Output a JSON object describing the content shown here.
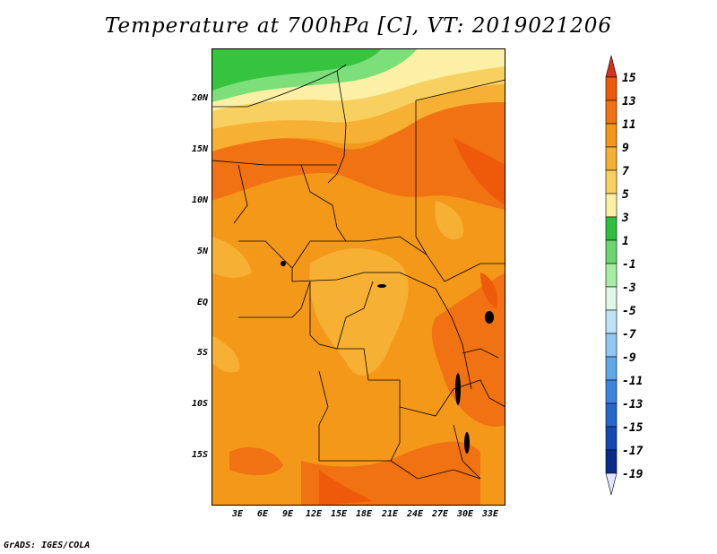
{
  "title": "Temperature at 700hPa [C], VT: 2019021206",
  "credit": "GrADS: IGES/COLA",
  "lat_labels": [
    "20N",
    "15N",
    "10N",
    "5N",
    "EQ",
    "5S",
    "10S",
    "15S"
  ],
  "lon_labels": [
    "3E",
    "6E",
    "9E",
    "12E",
    "15E",
    "18E",
    "21E",
    "24E",
    "27E",
    "30E",
    "33E"
  ],
  "colorbar": {
    "labels": [
      "15",
      "13",
      "11",
      "9",
      "7",
      "5",
      "3",
      "1",
      "-1",
      "-3",
      "-5",
      "-7",
      "-9",
      "-11",
      "-13",
      "-15",
      "-17",
      "-19"
    ],
    "colors": [
      "#d7301f",
      "#ef5a0a",
      "#f07212",
      "#f4981a",
      "#f6b033",
      "#f8d060",
      "#fbf0a6",
      "#2fbf3c",
      "#6bd66e",
      "#a7eca3",
      "#e0f6e6",
      "#bfe3f6",
      "#8fc8f0",
      "#5ea7e8",
      "#3b86dc",
      "#2567ca",
      "#1349b0",
      "#0b2b8c",
      "#0c1566"
    ]
  },
  "map": {
    "colors": {
      "green_dark": "#36c43e",
      "green_light": "#7ddf7a",
      "yellow_pale": "#fbf0a6",
      "yellow": "#f8d060",
      "orange_light": "#f6b033",
      "orange": "#f4981a",
      "orange_dark": "#f07212",
      "red_orange": "#ef5a0a",
      "border": "#000000"
    }
  }
}
